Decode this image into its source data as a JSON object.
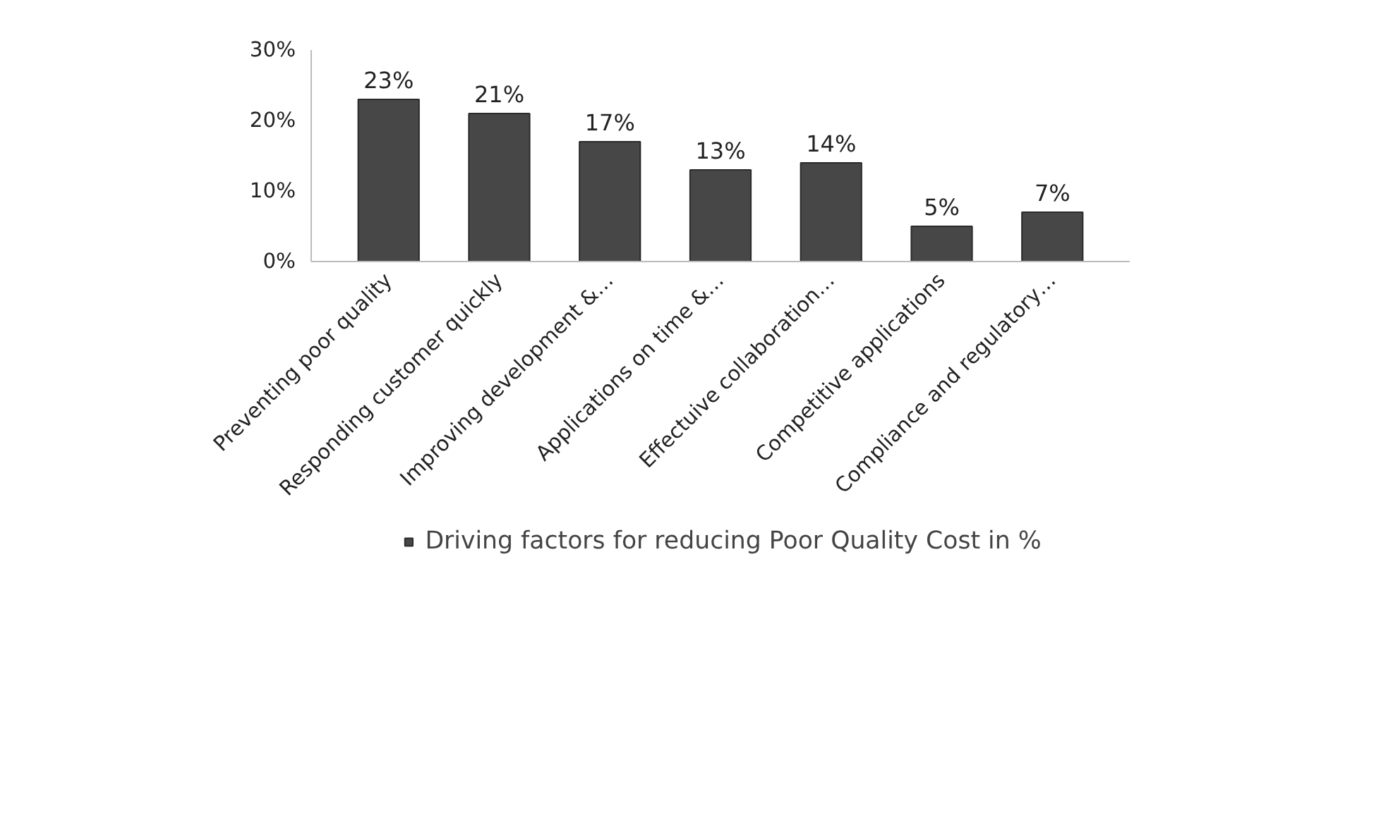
{
  "chart_data": {
    "type": "bar",
    "categories": [
      "Preventing poor quality",
      "Responding customer quickly",
      "Improving development &…",
      "Applications on time &…",
      "Effectuive collaboration…",
      "Competitive applications",
      "Compliance and regulatory…"
    ],
    "series": [
      {
        "name": "Driving factors for reducing Poor Quality Cost in %",
        "color": "#474747",
        "values": [
          23,
          21,
          17,
          13,
          14,
          5,
          7
        ]
      }
    ],
    "value_labels": [
      "23%",
      "21%",
      "17%",
      "13%",
      "14%",
      "5%",
      "7%"
    ],
    "ylim": [
      0,
      30
    ],
    "yticks": [
      {
        "value": 0,
        "label": "0%"
      },
      {
        "value": 10,
        "label": "10%"
      },
      {
        "value": 20,
        "label": "20%"
      },
      {
        "value": 30,
        "label": "30%"
      }
    ],
    "grid": false,
    "legend": "bottom"
  }
}
